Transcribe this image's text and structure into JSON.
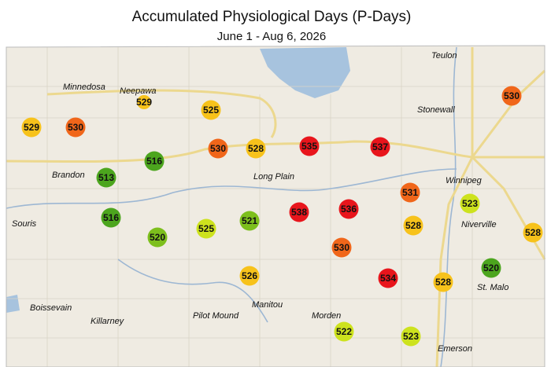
{
  "header": {
    "title": "Accumulated Physiological Days (P-Days)",
    "subtitle": "June 1 - Aug 6, 2026"
  },
  "places": [
    "Teulon",
    "Minnedosa",
    "Neepawa",
    "Stonewall",
    "Winnipeg",
    "Brandon",
    "Long Plain",
    "Souris",
    "Niverville",
    "St. Malo",
    "Boissevain",
    "Killarney",
    "Pilot Mound",
    "Manitou",
    "Morden",
    "Emerson"
  ],
  "stations": [
    {
      "value": 529,
      "color": "#f7c21b"
    },
    {
      "value": 530,
      "color": "#f0661a"
    },
    {
      "value": 529,
      "color": "#f7c21b"
    },
    {
      "value": 525,
      "color": "#f7c21b"
    },
    {
      "value": 530,
      "color": "#f0661a"
    },
    {
      "value": 516,
      "color": "#4ca51e"
    },
    {
      "value": 513,
      "color": "#4ca51e"
    },
    {
      "value": 530,
      "color": "#f0661a"
    },
    {
      "value": 528,
      "color": "#f7c21b"
    },
    {
      "value": 535,
      "color": "#e8151c"
    },
    {
      "value": 537,
      "color": "#e8151c"
    },
    {
      "value": 531,
      "color": "#f0661a"
    },
    {
      "value": 523,
      "color": "#cde21e"
    },
    {
      "value": 516,
      "color": "#4ca51e"
    },
    {
      "value": 520,
      "color": "#7dbf1d"
    },
    {
      "value": 525,
      "color": "#cde21e"
    },
    {
      "value": 521,
      "color": "#7dbf1d"
    },
    {
      "value": 538,
      "color": "#e8151c"
    },
    {
      "value": 536,
      "color": "#e8151c"
    },
    {
      "value": 528,
      "color": "#f7c21b"
    },
    {
      "value": 528,
      "color": "#f7c21b"
    },
    {
      "value": 530,
      "color": "#f0661a"
    },
    {
      "value": 526,
      "color": "#f7c21b"
    },
    {
      "value": 534,
      "color": "#e8151c"
    },
    {
      "value": 528,
      "color": "#f7c21b"
    },
    {
      "value": 520,
      "color": "#4ca51e"
    },
    {
      "value": 522,
      "color": "#cde21e"
    },
    {
      "value": 523,
      "color": "#cde21e"
    }
  ]
}
